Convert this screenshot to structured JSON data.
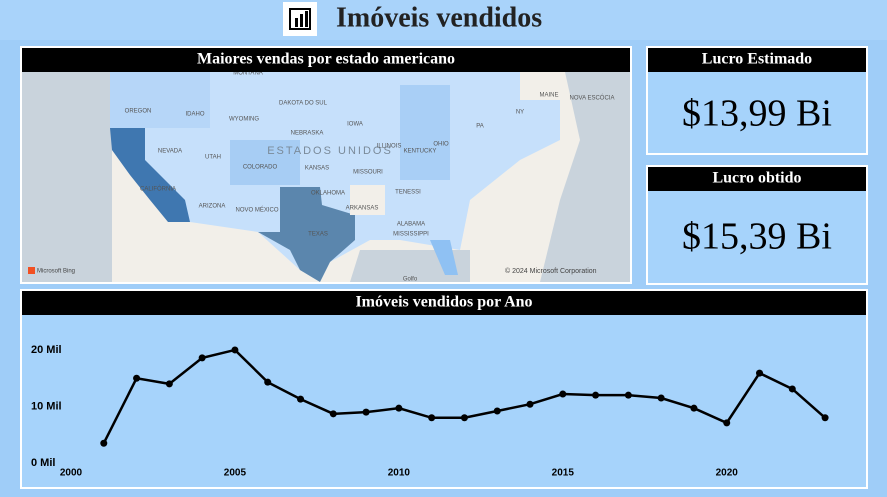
{
  "header": {
    "title": "Imóveis vendidos"
  },
  "map": {
    "title": "Maiores vendas por estado americano",
    "labels": [
      "MONTANA",
      "DAKOTA DO SUL",
      "OREGON",
      "IDAHO",
      "WYOMING",
      "NEBRASKA",
      "IOWA",
      "NEVADA",
      "UTAH",
      "COLORADO",
      "KANSAS",
      "ESTADOS UNIDOS",
      "ILLINOIS",
      "OHIO",
      "CALIFÓRNIA",
      "ARIZONA",
      "NOVO MÉXICO",
      "OKLAHOMA",
      "TEXAS",
      "MISSOURI",
      "KENTUCKY",
      "TENESSI",
      "ARKANSAS",
      "ALABAMA",
      "MISSISSIPPI",
      "MAINE",
      "NOVA ESCÓCIA",
      "NY",
      "PA",
      "Golfo"
    ],
    "attribution": "© 2024 Microsoft Corporation",
    "provider": "Microsoft Bing"
  },
  "cards": [
    {
      "title": "Lucro Estimado",
      "value": "$13,99 Bi"
    },
    {
      "title": "Lucro obtido",
      "value": "$15,39 Bi"
    }
  ],
  "chart_data": {
    "type": "line",
    "title": "Imóveis vendidos por Ano",
    "x": [
      2001,
      2002,
      2003,
      2004,
      2005,
      2006,
      2007,
      2008,
      2009,
      2010,
      2011,
      2012,
      2013,
      2014,
      2015,
      2016,
      2017,
      2018,
      2019,
      2020,
      2021,
      2022,
      2023
    ],
    "values": [
      3.5,
      15.0,
      14.0,
      18.6,
      20.0,
      14.3,
      11.3,
      8.7,
      9.0,
      9.7,
      8.0,
      8.0,
      9.2,
      10.4,
      12.2,
      12.0,
      12.0,
      11.5,
      9.7,
      7.1,
      15.9,
      13.1,
      8.0
    ],
    "color": "#000000",
    "xlim": [
      2000,
      2024.4
    ],
    "xticks": [
      2000,
      2005,
      2010,
      2015,
      2020
    ],
    "ylim": [
      0,
      23
    ],
    "yticks": [
      {
        "value": 0,
        "label": "0 Mil"
      },
      {
        "value": 10,
        "label": "10 Mil"
      },
      {
        "value": 20,
        "label": "20 Mil"
      }
    ]
  }
}
